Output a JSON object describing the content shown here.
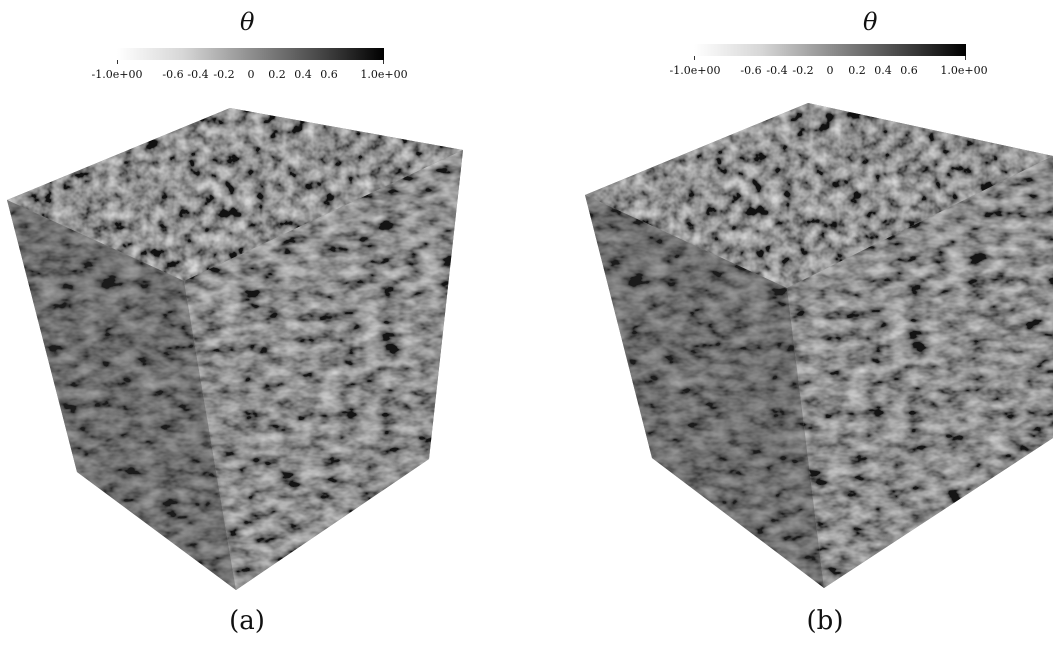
{
  "panels": [
    {
      "id": "a",
      "colorbar": {
        "symbol": "θ",
        "ticks": [
          "-1.0e+00",
          "-0.6",
          "-0.4",
          "-0.2",
          "0",
          "0.2",
          "0.4",
          "0.6",
          "1.0e+00"
        ],
        "range": [
          -1.0,
          1.0
        ]
      },
      "caption": "(a)"
    },
    {
      "id": "b",
      "colorbar": {
        "symbol": "θ",
        "ticks": [
          "-1.0e+00",
          "-0.6",
          "-0.4",
          "-0.2",
          "0",
          "0.2",
          "0.4",
          "0.6",
          "1.0e+00"
        ],
        "range": [
          -1.0,
          1.0
        ]
      },
      "caption": "(b)"
    }
  ],
  "colors": {
    "cube_top": "#6f6f6f",
    "cube_left": "#3f3f3f",
    "cube_right": "#666666"
  }
}
